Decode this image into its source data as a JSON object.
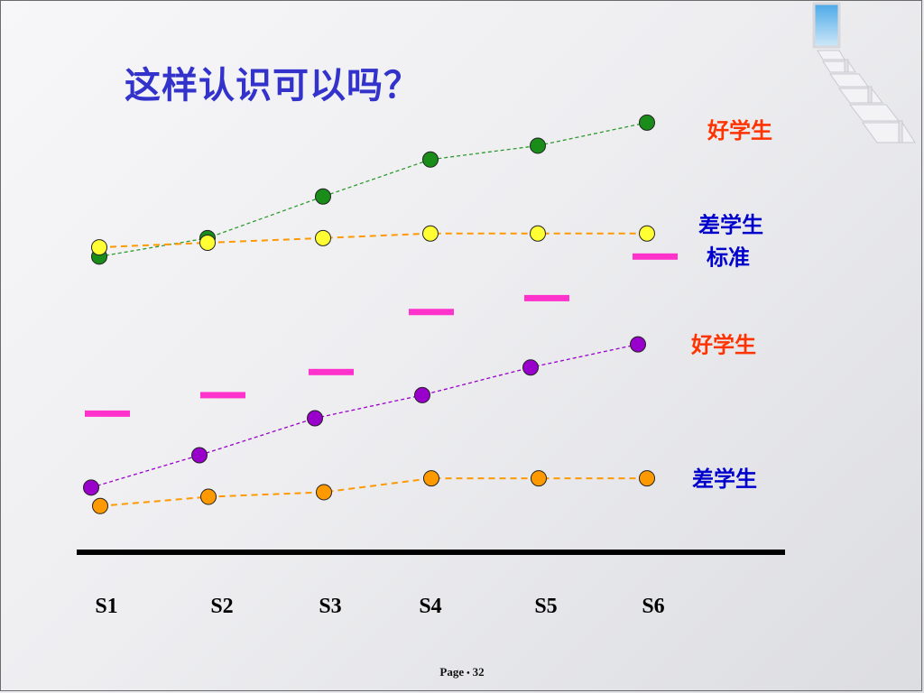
{
  "title": "这样认识可以吗？",
  "footer": {
    "page_label": "Page",
    "page_number": "32"
  },
  "chart_data": {
    "type": "line",
    "title": "",
    "xlabel": "",
    "ylabel": "",
    "categories": [
      "S1",
      "S2",
      "S3",
      "S4",
      "S5",
      "S6"
    ],
    "ylim": [
      0,
      100
    ],
    "grid": false,
    "series": [
      {
        "name": "好学生",
        "style": "dashed-line-markers",
        "color": "#1a8c1a",
        "line_color": "#2e9a2e",
        "label_color": "#ff3300",
        "values": [
          64,
          68,
          77,
          85,
          88,
          93
        ]
      },
      {
        "name": "差学生",
        "style": "dashed-line-markers",
        "color": "#ffff33",
        "line_color": "#ff9900",
        "label_color": "#0000cc",
        "values": [
          66,
          67,
          68,
          69,
          69,
          69
        ]
      },
      {
        "name": "标准",
        "style": "dash-markers",
        "color": "#ff33cc",
        "label_color": "#0000cc",
        "values": [
          30,
          34,
          39,
          52,
          55,
          64
        ]
      },
      {
        "name": "好学生",
        "style": "dashed-line-markers",
        "color": "#9900cc",
        "line_color": "#9900cc",
        "label_color": "#ff3300",
        "values": [
          14,
          21,
          29,
          34,
          40,
          45
        ]
      },
      {
        "name": "差学生",
        "style": "dashed-line-markers",
        "color": "#ff9900",
        "line_color": "#ff9900",
        "label_color": "#0000cc",
        "values": [
          10,
          12,
          13,
          16,
          16,
          16
        ]
      }
    ]
  }
}
